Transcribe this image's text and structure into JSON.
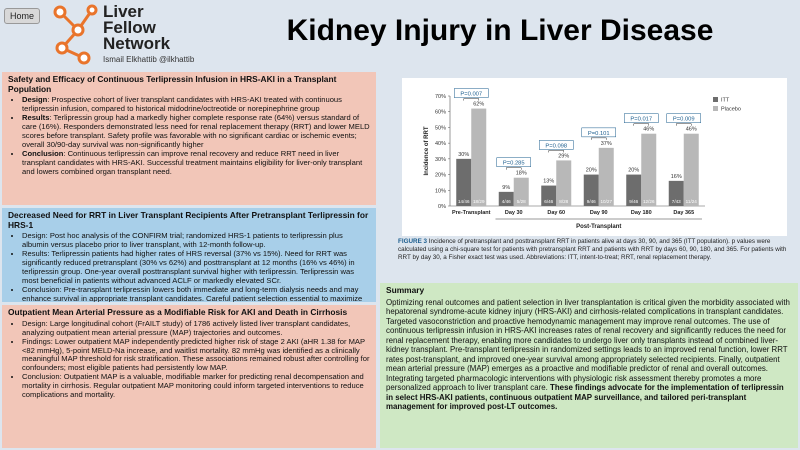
{
  "header": {
    "home": "Home",
    "logo": [
      "Liver",
      "Fellow",
      "Network"
    ],
    "author": "Ismail Elkhattib @ilkhattib",
    "title": "Kidney Injury in Liver Disease"
  },
  "sections": [
    {
      "title": "Safety and Efficacy of Continuous Terlipressin Infusion in HRS-AKI in a Transplant Population",
      "bullets": [
        {
          "label": "Design",
          "text": ": Prospective cohort of liver transplant candidates with HRS-AKI treated with continuous terlipressin infusion, compared to historical midodrine/octreotide or norepinephrine group"
        },
        {
          "label": "Results",
          "text": ": Terlipressin group had a markedly higher complete response rate (64%) versus standard of care (16%). Responders demonstrated less need for renal replacement therapy (RRT) and lower MELD scores before transplant. Safety profile was favorable with no significant cardiac or ischemic events; overall 30/90-day survival was non-significantly higher"
        },
        {
          "label": "Conclusion",
          "text": ": Continuous terlipressin can improve renal recovery and reduce RRT need in liver transplant candidates with HRS-AKI. Successful treatment maintains eligibility for liver-only transplant and lowers combined organ transplant need."
        }
      ]
    },
    {
      "title": "Decreased Need for RRT in Liver Transplant Recipients After Pretransplant Terlipressin for HRS-1",
      "bullets": [
        {
          "text": "Design: Post hoc analysis of the CONFIRM trial; randomized HRS-1 patients to terlipressin plus albumin versus placebo prior to liver transplant, with 12-month follow-up."
        },
        {
          "text": "Results: Terlipressin patients had higher rates of HRS reversal (37% vs 15%). Need for RRT was significantly reduced pretransplant (30% vs 62%) and posttransplant at 12 months (16% vs 46%) in terlipressin group. One-year overall posttransplant survival higher with terlipressin. Terlipressin was most beneficial in patients without advanced ACLF or markedly elevated SCr."
        },
        {
          "text": "Conclusion: Pre-transplant terlipressin lowers both immediate and long-term dialysis needs and may enhance survival in appropriate transplant candidates. Careful patient selection essential to maximize benefit and avoid adverse events in high-risk populations."
        }
      ]
    },
    {
      "title": "Outpatient Mean Arterial Pressure as a Modifiable Risk for AKI and Death in Cirrhosis",
      "bullets": [
        {
          "text": "Design: Large longitudinal cohort (FrAILT study) of 1786 actively listed liver transplant candidates, analyzing outpatient mean arterial pressure (MAP) trajectories and outcomes."
        },
        {
          "text": "Findings: Lower outpatient MAP independently predicted higher risk of stage 2 AKI (aHR 1.38 for MAP <82 mmHg), 5-point MELD-Na increase, and waitlist mortality. 82 mmHg was identified as a clinically meaningful MAP threshold for risk stratification. These associations remained robust after controlling for confounders; most eligible patients had persistently low MAP."
        },
        {
          "text": "Conclusion: Outpatient MAP is a valuable, modifiable marker for predicting renal decompensation and mortality in cirrhosis. Regular outpatient MAP monitoring could inform targeted interventions to reduce complications and mortality."
        }
      ]
    }
  ],
  "chart_data": {
    "type": "bar",
    "ylabel": "Incidence of RRT",
    "xlabel": "Post-Transplant",
    "categories": [
      "Pre-Transplant",
      "Day 30",
      "Day 60",
      "Day 90",
      "Day 180",
      "Day 365"
    ],
    "series": [
      {
        "name": "ITT",
        "color": "#6d6d6d",
        "values": [
          30,
          9,
          13,
          20,
          20,
          16
        ],
        "value_labels": [
          "30%",
          "9%",
          "13%",
          "20%",
          "20%",
          "16%"
        ],
        "counts": [
          "14/46",
          "4/46",
          "6/46",
          "9/46",
          "9/46",
          "7/43"
        ]
      },
      {
        "name": "Placebo",
        "color": "#b8b8b8",
        "values": [
          62,
          18,
          29,
          37,
          46,
          46
        ],
        "value_labels": [
          "62%",
          "18%",
          "29%",
          "37%",
          "46%",
          "46%"
        ],
        "counts": [
          "18/29",
          "5/28",
          "8/28",
          "10/27",
          "12/26",
          "11/24"
        ]
      }
    ],
    "pvalues": [
      "P=0.007",
      "P=0.285",
      "P=0.098",
      "P=0.101",
      "P=0.017",
      "P=0.009"
    ],
    "ylim": [
      0,
      70
    ],
    "yticks": [
      {
        "value": 0,
        "label": "0%"
      },
      {
        "value": 10,
        "label": "10%"
      },
      {
        "value": 20,
        "label": "20%"
      },
      {
        "value": 30,
        "label": "30%"
      },
      {
        "value": 40,
        "label": "40%"
      },
      {
        "value": 50,
        "label": "50%"
      },
      {
        "value": 60,
        "label": "60%"
      },
      {
        "value": 70,
        "label": "70%"
      }
    ],
    "caption_label": "FIGURE 3",
    "caption": " Incidence of pretransplant and posttransplant RRT in patients alive at days 30, 90, and 365 (ITT population). p values were calculated using a chi-square test for patients with pretransplant RRT and patients with RRT by days 60, 90, 180, and 365. For patients with RRT by day 30, a Fisher exact test was used. Abbreviations: ITT, intent-to-treat; RRT, renal replacement therapy."
  },
  "summary": {
    "title": "Summary",
    "text": "Optimizing renal outcomes and patient selection in liver transplantation is critical given the morbidity associated with hepatorenal syndrome-acute kidney injury (HRS-AKI) and cirrhosis-related complications in transplant candidates. Targeted vasoconstriction and proactive hemodynamic management may improve renal outcomes. The use of continuous terlipressin infusion in HRS-AKI increases rates of renal recovery and significantly reduces the need for renal replacement therapy, enabling more candidates to undergo liver only transplants instead of combined liver-kidney transplant. Pre-transplant terlipressin in randomized settings leads to an improved renal function, lower RRT rates post-transplant, and improved one-year survival among appropriately selected recipients. Finally, outpatient mean arterial pressure (MAP) emerges as a proactive and modifiable predictor of renal and overall outcomes. Integrating targeted pharmacologic interventions with physiologic risk assessment thereby promotes a more personalized approach to liver transplant care. ",
    "bold": "These findings advocate for the implementation of terlipressin in select HRS-AKI patients, continuous outpatient MAP surveillance, and tailored peri-transplant management for improved post-LT outcomes."
  }
}
